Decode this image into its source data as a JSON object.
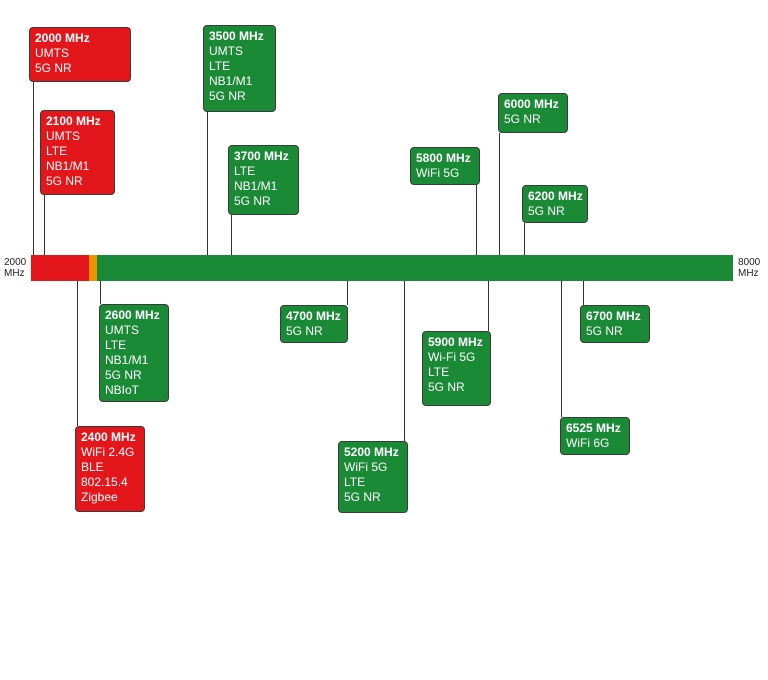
{
  "axis": {
    "start": [
      "2000",
      "MHz"
    ],
    "end": [
      "8000",
      "MHz"
    ],
    "segments": [
      "#e3161b",
      "#f39200",
      "#1a8a37"
    ]
  },
  "bands": [
    {
      "title": "2000 MHz",
      "lines": [
        "UMTS",
        "5G NR"
      ],
      "color": "#e3161b"
    },
    {
      "title": "2100 MHz",
      "lines": [
        "UMTS",
        "LTE",
        "NB1/M1",
        "5G NR"
      ],
      "color": "#e3161b"
    },
    {
      "title": "3500 MHz",
      "lines": [
        "UMTS",
        "LTE",
        "NB1/M1",
        "5G NR"
      ],
      "color": "#1a8a37"
    },
    {
      "title": "3700 MHz",
      "lines": [
        "LTE",
        "NB1/M1",
        "5G NR"
      ],
      "color": "#1a8a37"
    },
    {
      "title": "5800 MHz",
      "lines": [
        "WiFi 5G"
      ],
      "color": "#1a8a37"
    },
    {
      "title": "6000 MHz",
      "lines": [
        "5G NR"
      ],
      "color": "#1a8a37"
    },
    {
      "title": "6200 MHz",
      "lines": [
        "5G NR"
      ],
      "color": "#1a8a37"
    },
    {
      "title": "2600 MHz",
      "lines": [
        "UMTS",
        "LTE",
        "NB1/M1",
        "5G NR",
        "NBIoT"
      ],
      "color": "#1a8a37"
    },
    {
      "title": "2400 MHz",
      "lines": [
        "WiFi 2.4G",
        "BLE",
        "802.15.4",
        "Zigbee"
      ],
      "color": "#e3161b"
    },
    {
      "title": "4700 MHz",
      "lines": [
        "5G NR"
      ],
      "color": "#1a8a37"
    },
    {
      "title": "5200 MHz",
      "lines": [
        "WiFi 5G",
        "LTE",
        "5G NR"
      ],
      "color": "#1a8a37"
    },
    {
      "title": "5900 MHz",
      "lines": [
        "Wi-Fi 5G",
        "LTE",
        "5G NR"
      ],
      "color": "#1a8a37"
    },
    {
      "title": "6700 MHz",
      "lines": [
        "5G NR"
      ],
      "color": "#1a8a37"
    },
    {
      "title": "6525 MHz",
      "lines": [
        "WiFi 6G"
      ],
      "color": "#1a8a37"
    }
  ]
}
